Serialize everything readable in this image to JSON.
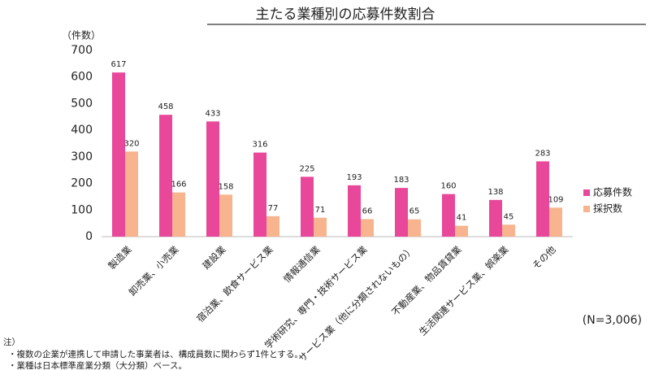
{
  "chart_data": {
    "type": "bar",
    "title": "主たる業種別の応募件数割合",
    "y_unit": "（件数）",
    "categories": [
      "製造業",
      "卸売業、小売業",
      "建設業",
      "宿泊業、飲食サービス業",
      "情報通信業",
      "学術研究、専門・技術サービス業",
      "サービス業（他に分類されないもの）",
      "不動産業、物品賃貸業",
      "生活関連サービス業、娯楽業",
      "その他"
    ],
    "series": [
      {
        "name": "応募件数",
        "color": "#e8479a",
        "values": [
          617,
          458,
          433,
          316,
          225,
          193,
          183,
          160,
          138,
          283
        ]
      },
      {
        "name": "採択数",
        "color": "#f7b48f",
        "values": [
          320,
          166,
          158,
          77,
          71,
          66,
          65,
          41,
          45,
          109
        ]
      }
    ],
    "ylim": [
      0,
      700
    ],
    "yticks": [
      0,
      100,
      200,
      300,
      400,
      500,
      600,
      700
    ],
    "grid": false,
    "legend": "right",
    "annotation": "(N=3,006)"
  },
  "notes": {
    "heading": "注）",
    "items": [
      "・複数の企業が連携して申請した事業者は、構成員数に関わらず1件とする。",
      "・業種は日本標準産業分類（大分類）ベース。"
    ]
  }
}
